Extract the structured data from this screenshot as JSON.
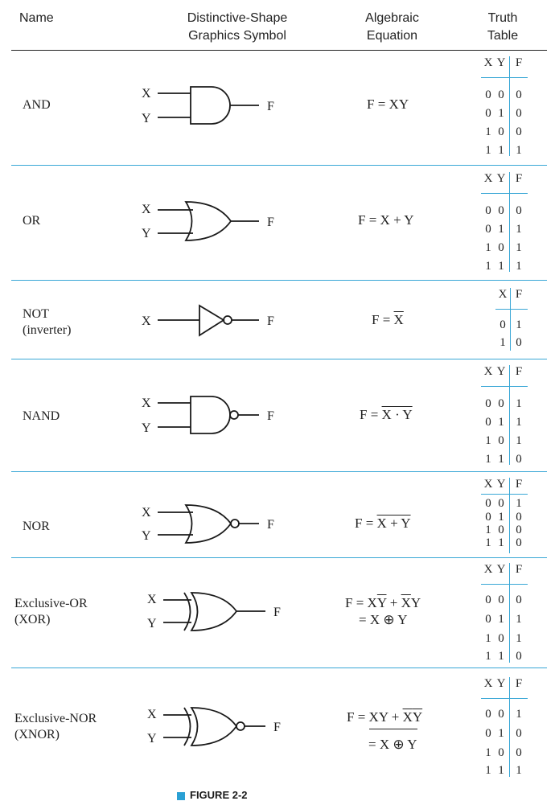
{
  "headers": {
    "name": "Name",
    "symbol_line1": "Distinctive-Shape",
    "symbol_line2": "Graphics Symbol",
    "equation_line1": "Algebraic",
    "equation_line2": "Equation",
    "table_line1": "Truth",
    "table_line2": "Table"
  },
  "gates": [
    {
      "name_line1": "AND",
      "name_line2": "",
      "input1": "X",
      "input2": "Y",
      "output": "F",
      "equation": "F = XY",
      "tt_head": [
        "X",
        "Y",
        "F"
      ],
      "tt_rows": [
        [
          "0",
          "0",
          "0"
        ],
        [
          "0",
          "1",
          "0"
        ],
        [
          "1",
          "0",
          "0"
        ],
        [
          "1",
          "1",
          "1"
        ]
      ]
    },
    {
      "name_line1": "OR",
      "name_line2": "",
      "input1": "X",
      "input2": "Y",
      "output": "F",
      "equation": "F = X + Y",
      "tt_head": [
        "X",
        "Y",
        "F"
      ],
      "tt_rows": [
        [
          "0",
          "0",
          "0"
        ],
        [
          "0",
          "1",
          "1"
        ],
        [
          "1",
          "0",
          "1"
        ],
        [
          "1",
          "1",
          "1"
        ]
      ]
    },
    {
      "name_line1": "NOT",
      "name_line2": "(inverter)",
      "input1": "X",
      "output": "F",
      "equation_lhs": "F = ",
      "equation_bar": "X",
      "tt_head": [
        "X",
        "F"
      ],
      "tt_rows": [
        [
          "0",
          "1"
        ],
        [
          "1",
          "0"
        ]
      ]
    },
    {
      "name_line1": "NAND",
      "name_line2": "",
      "input1": "X",
      "input2": "Y",
      "output": "F",
      "equation_lhs": "F = ",
      "equation_bar": "X · Y",
      "tt_head": [
        "X",
        "Y",
        "F"
      ],
      "tt_rows": [
        [
          "0",
          "0",
          "1"
        ],
        [
          "0",
          "1",
          "1"
        ],
        [
          "1",
          "0",
          "1"
        ],
        [
          "1",
          "1",
          "0"
        ]
      ]
    },
    {
      "name_line1": "NOR",
      "name_line2": "",
      "input1": "X",
      "input2": "Y",
      "output": "F",
      "equation_lhs": "F = ",
      "equation_bar": "X + Y",
      "tt_head": [
        "X",
        "Y",
        "F"
      ],
      "tt_rows": [
        [
          "0",
          "0",
          "1"
        ],
        [
          "0",
          "1",
          "0"
        ],
        [
          "1",
          "0",
          "0"
        ],
        [
          "1",
          "1",
          "0"
        ]
      ]
    },
    {
      "name_line1": "Exclusive-OR",
      "name_line2": "(XOR)",
      "input1": "X",
      "input2": "Y",
      "output": "F",
      "eq_a": "F = X",
      "eq_a_bar": "Y",
      "eq_b": " + ",
      "eq_c_bar": "X",
      "eq_d": "Y",
      "eq_line2": "= X ⊕ Y",
      "tt_head": [
        "X",
        "Y",
        "F"
      ],
      "tt_rows": [
        [
          "0",
          "0",
          "0"
        ],
        [
          "0",
          "1",
          "1"
        ],
        [
          "1",
          "0",
          "1"
        ],
        [
          "1",
          "1",
          "0"
        ]
      ]
    },
    {
      "name_line1": "Exclusive-NOR",
      "name_line2": "(XNOR)",
      "input1": "X",
      "input2": "Y",
      "output": "F",
      "eq_a": "F = XY + ",
      "eq_c_bar": "X",
      "eq_d_bar": "Y",
      "eq_line2": "= X ⊕ Y",
      "tt_head": [
        "X",
        "Y",
        "F"
      ],
      "tt_rows": [
        [
          "0",
          "0",
          "1"
        ],
        [
          "0",
          "1",
          "0"
        ],
        [
          "1",
          "0",
          "0"
        ],
        [
          "1",
          "1",
          "1"
        ]
      ]
    }
  ],
  "caption": "FIGURE 2-2"
}
